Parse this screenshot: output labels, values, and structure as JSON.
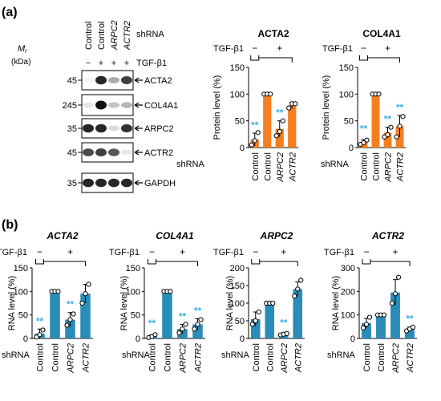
{
  "panels": {
    "a": {
      "label": "(a)"
    },
    "b": {
      "label": "(b)"
    }
  },
  "blot": {
    "mr_label": "M",
    "mr_sub": "r",
    "kda_label": "(kDa)",
    "shrna_label": "shRNA",
    "tgf_label": "TGF-β1",
    "lane_labels": [
      "Control",
      "Control",
      "ARPC2",
      "ACTR2"
    ],
    "lane_italic": [
      false,
      false,
      true,
      true
    ],
    "tgf_signs": [
      "−",
      "+",
      "+",
      "+"
    ],
    "rows": [
      {
        "mw": "45",
        "name": "ACTA2",
        "intensity": [
          0.05,
          0.9,
          0.35,
          0.8
        ]
      },
      {
        "mw": "245",
        "name": "COL4A1",
        "intensity": [
          0.1,
          1.0,
          0.25,
          0.3
        ]
      },
      {
        "mw": "35",
        "name": "ARPC2",
        "intensity": [
          0.9,
          0.9,
          0.15,
          0.85
        ]
      },
      {
        "mw": "45",
        "name": "ACTR2",
        "intensity": [
          0.75,
          0.8,
          0.7,
          0.1
        ]
      },
      {
        "mw": "35",
        "name": "GAPDH",
        "intensity": [
          0.9,
          0.9,
          0.9,
          0.9
        ]
      }
    ]
  },
  "colors": {
    "orange": "#F47E20",
    "blue": "#2A8CB8",
    "sig": "#3AB0E0"
  },
  "chart_data": [
    {
      "type": "bar",
      "panel": "a",
      "title": "ACTA2",
      "title_italic": false,
      "categories": [
        "Control",
        "Control",
        "ARPC2",
        "ACTR2"
      ],
      "values": [
        15,
        100,
        35,
        79
      ],
      "errors": [
        12,
        0,
        15,
        6
      ],
      "points": [
        [
          5,
          13,
          28
        ],
        [
          100,
          100,
          100
        ],
        [
          22,
          30,
          50
        ],
        [
          74,
          82,
          82
        ]
      ],
      "sig": [
        true,
        false,
        true,
        false
      ],
      "tgf": [
        "−",
        "+"
      ],
      "ylabel": "Protein level (%)",
      "xlabel_prefix": "shRNA",
      "ylim": [
        0,
        150
      ],
      "yticks": [
        0,
        50,
        100,
        150
      ],
      "color": "#F47E20"
    },
    {
      "type": "bar",
      "panel": "a",
      "title": "COL4A1",
      "title_italic": false,
      "categories": [
        "Control",
        "Control",
        "ARPC2",
        "ACTR2"
      ],
      "values": [
        10,
        100,
        28,
        40
      ],
      "errors": [
        5,
        0,
        10,
        20
      ],
      "points": [
        [
          6,
          9,
          14
        ],
        [
          100,
          100,
          100
        ],
        [
          20,
          24,
          38
        ],
        [
          20,
          40,
          58
        ]
      ],
      "sig": [
        true,
        false,
        true,
        true
      ],
      "tgf": [
        "−",
        "+"
      ],
      "ylabel": "Protein level (%)",
      "xlabel_prefix": "shRNA",
      "ylim": [
        0,
        150
      ],
      "yticks": [
        0,
        50,
        100,
        150
      ],
      "color": "#F47E20"
    },
    {
      "type": "bar",
      "panel": "b",
      "title": "ACTA2",
      "title_italic": true,
      "categories": [
        "Control",
        "Control",
        "ARPC2",
        "ACTR2"
      ],
      "values": [
        10,
        100,
        40,
        95
      ],
      "errors": [
        10,
        0,
        15,
        20
      ],
      "points": [
        [
          3,
          8,
          18
        ],
        [
          100,
          100,
          100
        ],
        [
          28,
          40,
          52
        ],
        [
          75,
          95,
          115
        ]
      ],
      "sig": [
        true,
        false,
        true,
        false
      ],
      "tgf": [
        "−",
        "+"
      ],
      "ylabel": "RNA level (%)",
      "xlabel_prefix": "shRNA",
      "ylim": [
        0,
        150
      ],
      "yticks": [
        0,
        50,
        100,
        150
      ],
      "color": "#2A8CB8"
    },
    {
      "type": "bar",
      "panel": "b",
      "title": "COL4A1",
      "title_italic": true,
      "categories": [
        "Control",
        "Control",
        "ARPC2",
        "ACTR2"
      ],
      "values": [
        5,
        100,
        20,
        30
      ],
      "errors": [
        3,
        0,
        10,
        12
      ],
      "points": [
        [
          2,
          4,
          8
        ],
        [
          100,
          100,
          100
        ],
        [
          12,
          20,
          30
        ],
        [
          20,
          30,
          40
        ]
      ],
      "sig": [
        true,
        false,
        true,
        true
      ],
      "tgf": [
        "−",
        "+"
      ],
      "ylabel": "RNA level (%)",
      "xlabel_prefix": "shRNA",
      "ylim": [
        0,
        150
      ],
      "yticks": [
        0,
        50,
        100,
        150
      ],
      "color": "#2A8CB8"
    },
    {
      "type": "bar",
      "panel": "b",
      "title": "ARPC2",
      "title_italic": true,
      "categories": [
        "Control",
        "Control",
        "ARPC2",
        "ACTR2"
      ],
      "values": [
        55,
        100,
        12,
        140
      ],
      "errors": [
        20,
        0,
        3,
        20
      ],
      "points": [
        [
          40,
          50,
          75
        ],
        [
          100,
          100,
          100
        ],
        [
          10,
          12,
          14
        ],
        [
          120,
          140,
          165
        ]
      ],
      "sig": [
        false,
        false,
        true,
        false
      ],
      "tgf": [
        "−",
        "+"
      ],
      "ylabel": "RNA level (%)",
      "xlabel_prefix": "shRNA",
      "ylim": [
        0,
        200
      ],
      "yticks": [
        0,
        50,
        100,
        150,
        200
      ],
      "color": "#2A8CB8"
    },
    {
      "type": "bar",
      "panel": "b",
      "title": "ACTR2",
      "title_italic": true,
      "categories": [
        "Control",
        "Control",
        "ARPC2",
        "ACTR2"
      ],
      "values": [
        65,
        100,
        195,
        40
      ],
      "errors": [
        20,
        0,
        55,
        8
      ],
      "points": [
        [
          45,
          60,
          90
        ],
        [
          100,
          100,
          100
        ],
        [
          150,
          190,
          260
        ],
        [
          32,
          40,
          48
        ]
      ],
      "sig": [
        false,
        false,
        false,
        true
      ],
      "tgf": [
        "−",
        "+"
      ],
      "ylabel": "RNA level (%)",
      "xlabel_prefix": "shRNA",
      "ylim": [
        0,
        300
      ],
      "yticks": [
        0,
        100,
        200,
        300
      ],
      "color": "#2A8CB8"
    }
  ]
}
